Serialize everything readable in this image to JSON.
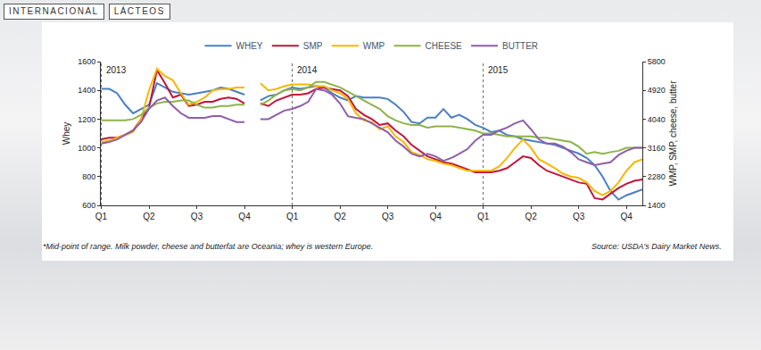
{
  "header_tags": [
    "INTERNACIONAL",
    "LÁCTEOS"
  ],
  "chart_data": {
    "type": "line",
    "categories": [
      "Q1",
      null,
      null,
      null,
      null,
      null,
      "Q2",
      null,
      null,
      null,
      null,
      null,
      "Q3",
      null,
      null,
      null,
      null,
      null,
      "Q4",
      null,
      null,
      null,
      null,
      null,
      "Q1",
      null,
      null,
      null,
      null,
      null,
      "Q2",
      null,
      null,
      null,
      null,
      null,
      "Q3",
      null,
      null,
      null,
      null,
      null,
      "Q4",
      null,
      null,
      null,
      null,
      null,
      "Q1",
      null,
      null,
      null,
      null,
      null,
      "Q2",
      null,
      null,
      null,
      null,
      null,
      "Q3",
      null,
      null,
      null,
      null,
      null,
      "Q4",
      null,
      null
    ],
    "series": [
      {
        "name": "WHEY",
        "color": "#4a7fc1",
        "axis": "y",
        "values": [
          1410,
          1410,
          1380,
          1300,
          1240,
          1270,
          1300,
          1450,
          1420,
          1390,
          1380,
          1370,
          1380,
          1390,
          1400,
          1420,
          1410,
          1390,
          1370,
          null,
          1330,
          1360,
          1370,
          1400,
          1420,
          1410,
          1420,
          1430,
          1420,
          1380,
          1350,
          1330,
          1360,
          1350,
          1350,
          1350,
          1340,
          1300,
          1250,
          1180,
          1170,
          1210,
          1210,
          1270,
          1210,
          1230,
          1200,
          1160,
          1140,
          1110,
          1120,
          1090,
          1080,
          1060,
          1050,
          1040,
          1030,
          1020,
          1000,
          980,
          960,
          930,
          880,
          800,
          700,
          640,
          670,
          690,
          710
        ]
      },
      {
        "name": "SMP",
        "color": "#c0143c",
        "axis": "y2",
        "values": [
          3420,
          3470,
          3470,
          3560,
          3690,
          4040,
          4390,
          5540,
          5140,
          4700,
          4790,
          4440,
          4480,
          4570,
          4570,
          4660,
          4700,
          4660,
          4520,
          null,
          4520,
          4440,
          4610,
          4700,
          4790,
          4790,
          4830,
          4960,
          5010,
          4960,
          4920,
          4740,
          4350,
          4170,
          4040,
          3860,
          3910,
          3690,
          3510,
          3250,
          3070,
          2900,
          2810,
          2720,
          2680,
          2590,
          2500,
          2410,
          2410,
          2410,
          2460,
          2540,
          2720,
          2900,
          2850,
          2630,
          2460,
          2370,
          2280,
          2190,
          2100,
          2060,
          1620,
          1580,
          1750,
          1930,
          2060,
          2150,
          2190
        ]
      },
      {
        "name": "WMP",
        "color": "#f5b800",
        "axis": "y2",
        "values": [
          3340,
          3380,
          3470,
          3560,
          3640,
          4040,
          4920,
          5580,
          5360,
          5230,
          4830,
          4480,
          4570,
          4700,
          4920,
          4960,
          4960,
          5010,
          5010,
          null,
          5140,
          4920,
          4960,
          5050,
          5100,
          5100,
          5100,
          5050,
          5050,
          4920,
          4830,
          4660,
          4220,
          4000,
          3950,
          3730,
          3820,
          3510,
          3340,
          3030,
          2940,
          2810,
          2760,
          2680,
          2630,
          2540,
          2460,
          2460,
          2460,
          2460,
          2590,
          2850,
          3160,
          3420,
          3160,
          2810,
          2680,
          2540,
          2370,
          2280,
          2240,
          2100,
          1840,
          1710,
          1840,
          2100,
          2460,
          2720,
          2810
        ]
      },
      {
        "name": "CHEESE",
        "color": "#8db34a",
        "axis": "y2",
        "values": [
          4000,
          4000,
          4000,
          4000,
          4040,
          4170,
          4390,
          4520,
          4570,
          4570,
          4610,
          4610,
          4480,
          4390,
          4390,
          4440,
          4440,
          4480,
          4480,
          null,
          4480,
          4610,
          4790,
          4920,
          4960,
          4920,
          5010,
          5180,
          5180,
          5100,
          5010,
          4880,
          4740,
          4610,
          4480,
          4350,
          4130,
          4000,
          3910,
          3860,
          3860,
          3780,
          3820,
          3820,
          3820,
          3780,
          3730,
          3690,
          3600,
          3600,
          3560,
          3510,
          3510,
          3510,
          3510,
          3470,
          3470,
          3420,
          3380,
          3340,
          3200,
          2980,
          3030,
          2980,
          3030,
          3070,
          3160,
          3160,
          3160
        ]
      },
      {
        "name": "BUTTER",
        "color": "#8e5ea8",
        "axis": "y2",
        "values": [
          3290,
          3340,
          3420,
          3560,
          3690,
          3950,
          4350,
          4610,
          4700,
          4440,
          4220,
          4080,
          4080,
          4080,
          4130,
          4130,
          4040,
          3950,
          3950,
          null,
          4040,
          4040,
          4170,
          4300,
          4350,
          4440,
          4570,
          4960,
          4920,
          4790,
          4520,
          4130,
          4080,
          4040,
          3910,
          3780,
          3640,
          3380,
          3200,
          2980,
          2900,
          2980,
          2900,
          2760,
          2850,
          2980,
          3120,
          3380,
          3560,
          3560,
          3690,
          3780,
          3910,
          4000,
          3730,
          3420,
          3290,
          3290,
          3200,
          3030,
          2810,
          2720,
          2630,
          2680,
          2720,
          2940,
          3070,
          3160,
          3160
        ]
      }
    ],
    "y_label": "Whey",
    "y2_label": "WMP, SMP, cheese, butter",
    "ylim": [
      600,
      1600
    ],
    "yticks": [
      600,
      800,
      1000,
      1200,
      1400,
      1600
    ],
    "y2lim": [
      1400,
      5800
    ],
    "y2ticks": [
      1400,
      2280,
      3160,
      4040,
      4920,
      5800
    ],
    "annotations": [
      {
        "text": "2013",
        "x": 0
      },
      {
        "text": "2014",
        "x": 24
      },
      {
        "text": "2015",
        "x": 48
      }
    ],
    "footnote": "*Mid-point of range. Milk powder, cheese and butterfat are Oceania; whey is western Europe.",
    "source": "Source: USDA's Dairy Market News.",
    "legend": "top",
    "grid": false
  }
}
